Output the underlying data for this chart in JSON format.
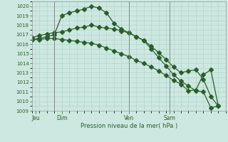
{
  "background_color": "#cce8e0",
  "grid_color": "#b0d0c8",
  "line_color": "#2a5e2a",
  "title": "Pression niveau de la mer( hPa )",
  "xlabel_ticks": [
    "Jeu",
    "Dim",
    "Ven",
    "Sam"
  ],
  "xlabel_tick_positions": [
    0.5,
    4.0,
    13.0,
    18.5
  ],
  "vline_positions": [
    3.0,
    13.0,
    18.5
  ],
  "ylim": [
    1009,
    1020.5
  ],
  "xlim": [
    0,
    26
  ],
  "yticks": [
    1009,
    1010,
    1011,
    1012,
    1013,
    1014,
    1015,
    1016,
    1017,
    1018,
    1019,
    1020
  ],
  "series1_x": [
    0,
    1,
    2,
    3,
    4,
    5,
    6,
    7,
    8,
    9,
    10,
    11,
    12,
    13,
    14,
    15,
    16,
    17,
    18,
    19,
    20,
    21,
    22,
    23,
    24,
    25
  ],
  "series1_y": [
    1016.7,
    1016.9,
    1017.1,
    1017.2,
    1017.3,
    1017.5,
    1017.7,
    1017.8,
    1018.0,
    1017.8,
    1017.7,
    1017.6,
    1017.4,
    1017.2,
    1016.8,
    1016.4,
    1015.8,
    1015.1,
    1014.4,
    1013.6,
    1013.0,
    1013.2,
    1013.3,
    1012.3,
    1010.5,
    1009.5
  ],
  "series2_x": [
    0,
    1,
    2,
    3,
    4,
    5,
    6,
    7,
    8,
    9,
    10,
    11,
    12,
    13,
    14,
    15,
    16,
    17,
    18,
    19,
    20,
    21,
    22,
    23,
    24,
    25
  ],
  "series2_y": [
    1016.5,
    1016.6,
    1016.8,
    1017.0,
    1019.0,
    1019.3,
    1019.5,
    1019.7,
    1020.0,
    1019.8,
    1019.3,
    1018.2,
    1017.6,
    1017.2,
    1016.8,
    1016.4,
    1015.5,
    1014.6,
    1013.7,
    1012.8,
    1012.1,
    1011.6,
    1011.1,
    1011.0,
    1009.3,
    1009.5
  ],
  "series3_x": [
    0,
    1,
    2,
    3,
    4,
    5,
    6,
    7,
    8,
    9,
    10,
    11,
    12,
    13,
    14,
    15,
    16,
    17,
    18,
    19,
    20,
    21,
    22,
    23,
    24,
    25
  ],
  "series3_y": [
    1016.5,
    1016.5,
    1016.6,
    1016.6,
    1016.5,
    1016.4,
    1016.3,
    1016.2,
    1016.1,
    1015.9,
    1015.6,
    1015.3,
    1015.0,
    1014.7,
    1014.3,
    1014.0,
    1013.6,
    1013.2,
    1012.7,
    1012.2,
    1011.8,
    1011.1,
    1011.2,
    1012.8,
    1013.3,
    1009.5
  ]
}
